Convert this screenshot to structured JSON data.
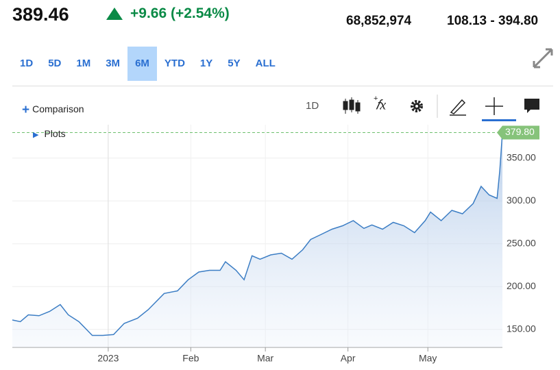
{
  "header": {
    "price": "389.46",
    "change": "+9.66 (+2.54%)",
    "volume": "68,852,974",
    "range_52w": "108.13 - 394.80"
  },
  "ranges": [
    "1D",
    "5D",
    "1M",
    "3M",
    "6M",
    "YTD",
    "1Y",
    "5Y",
    "ALL"
  ],
  "selected_range": "6M",
  "toolbar": {
    "comparison": "Comparison",
    "interval": "1D",
    "plots": "Plots"
  },
  "chart_data": {
    "type": "area",
    "color": "#3b7dc4",
    "x": [
      -36,
      -33,
      -30,
      -26,
      -22,
      -18,
      -15,
      -11,
      -6,
      -2,
      2,
      6,
      11,
      15,
      21,
      26,
      30,
      34,
      38,
      42,
      44,
      48,
      51,
      54,
      57,
      61,
      65,
      69,
      73,
      76,
      80,
      84,
      88,
      92,
      96,
      99,
      103,
      107,
      111,
      115,
      119,
      121,
      125,
      129,
      133,
      137,
      140,
      143,
      146,
      147,
      148
    ],
    "values": [
      161,
      159,
      167,
      166,
      171,
      179,
      167,
      159,
      143,
      143,
      144,
      157,
      163,
      173,
      192,
      195,
      208,
      217,
      219,
      219,
      229,
      219,
      208,
      236,
      232,
      237,
      239,
      232,
      243,
      255,
      261,
      267,
      271,
      277,
      268,
      272,
      267,
      275,
      271,
      263,
      277,
      287,
      277,
      289,
      285,
      297,
      317,
      307,
      303,
      335,
      379.8
    ],
    "xlim": [
      -36,
      148
    ],
    "xticks": [
      {
        "value": 0,
        "label": "2023"
      },
      {
        "value": 31,
        "label": "Feb"
      },
      {
        "value": 59,
        "label": "Mar"
      },
      {
        "value": 90,
        "label": "Apr"
      },
      {
        "value": 120,
        "label": "May"
      }
    ],
    "ylim": [
      129,
      389
    ],
    "yticks": [
      {
        "value": 150,
        "label": "150.00"
      },
      {
        "value": 200,
        "label": "200.00"
      },
      {
        "value": 250,
        "label": "250.00"
      },
      {
        "value": 300,
        "label": "300.00"
      },
      {
        "value": 350,
        "label": "350.00"
      }
    ],
    "last": {
      "value": 379.8,
      "label": "379.80"
    },
    "grid": true
  }
}
